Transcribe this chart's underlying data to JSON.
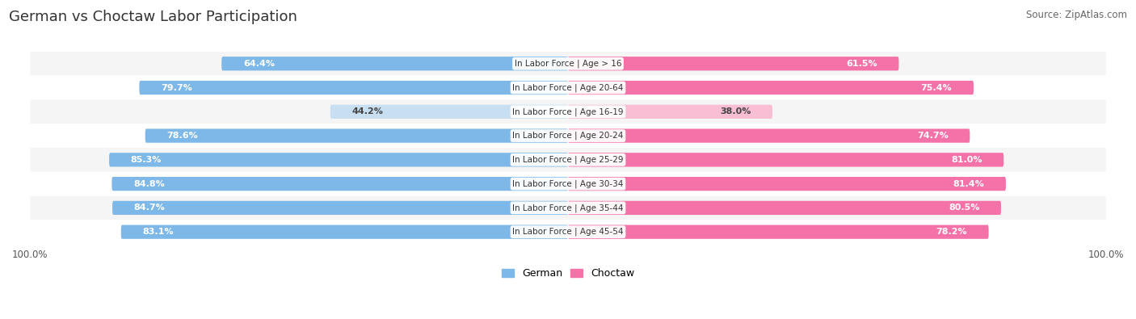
{
  "title": "German vs Choctaw Labor Participation",
  "source": "Source: ZipAtlas.com",
  "categories": [
    "In Labor Force | Age > 16",
    "In Labor Force | Age 20-64",
    "In Labor Force | Age 16-19",
    "In Labor Force | Age 20-24",
    "In Labor Force | Age 25-29",
    "In Labor Force | Age 30-34",
    "In Labor Force | Age 35-44",
    "In Labor Force | Age 45-54"
  ],
  "german_values": [
    64.4,
    79.7,
    44.2,
    78.6,
    85.3,
    84.8,
    84.7,
    83.1
  ],
  "choctaw_values": [
    61.5,
    75.4,
    38.0,
    74.7,
    81.0,
    81.4,
    80.5,
    78.2
  ],
  "german_color": "#7db8e8",
  "german_color_light": "#c8dff2",
  "choctaw_color": "#f472a8",
  "choctaw_color_light": "#f9bdd4",
  "bg_color": "#ffffff",
  "row_bg_odd": "#f5f5f5",
  "row_bg_even": "#ffffff",
  "max_val": 100.0,
  "label_fontsize": 8.0,
  "title_fontsize": 13,
  "source_fontsize": 8.5,
  "legend_fontsize": 9,
  "tick_fontsize": 8.5
}
